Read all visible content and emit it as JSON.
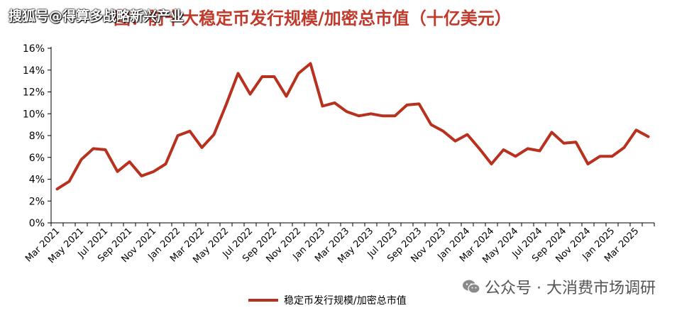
{
  "header": {
    "title": "图：前十大稳定币发行规模/加密总市值（十亿美元）",
    "watermark": "搜狐号@得算多战略新兴产业"
  },
  "footer": {
    "wechat_label": "公众号 · 大消费市场调研"
  },
  "chart_data": {
    "type": "line",
    "title": "",
    "xlabel": "",
    "ylabel": "",
    "ylim": [
      0,
      16
    ],
    "y_ticks": [
      0,
      2,
      4,
      6,
      8,
      10,
      12,
      14,
      16
    ],
    "y_tick_format": "percent",
    "grid": false,
    "legend_position": "bottom",
    "x_tick_labels": [
      "Mar 2021",
      "May 2021",
      "Jul 2021",
      "Sep 2021",
      "Nov 2021",
      "Jan 2022",
      "Mar 2022",
      "May 2022",
      "Jul 2022",
      "Sep 2022",
      "Nov 2022",
      "Jan 2023",
      "Mar 2023",
      "May 2023",
      "Jul 2023",
      "Sep 2023",
      "Nov 2023",
      "Jan 2024",
      "Mar 2024",
      "May 2024",
      "Jul 2024",
      "Sep 2024",
      "Nov 2024",
      "Jan 2025",
      "Mar 2025"
    ],
    "series": [
      {
        "name": "稳定币发行规模/加密总市值",
        "color": "#b8311f",
        "values": [
          3.1,
          3.8,
          5.8,
          6.8,
          6.7,
          4.7,
          5.6,
          4.3,
          4.7,
          5.4,
          8.0,
          8.4,
          6.9,
          8.1,
          10.8,
          13.7,
          11.8,
          13.4,
          13.4,
          11.6,
          13.7,
          14.6,
          10.7,
          11.0,
          10.2,
          9.8,
          10.0,
          9.8,
          9.8,
          10.8,
          10.9,
          9.0,
          8.4,
          7.5,
          8.1,
          6.8,
          5.4,
          6.7,
          6.1,
          6.8,
          6.6,
          8.3,
          7.3,
          7.4,
          5.4,
          6.1,
          6.1,
          6.9,
          8.5,
          7.9
        ]
      }
    ]
  }
}
